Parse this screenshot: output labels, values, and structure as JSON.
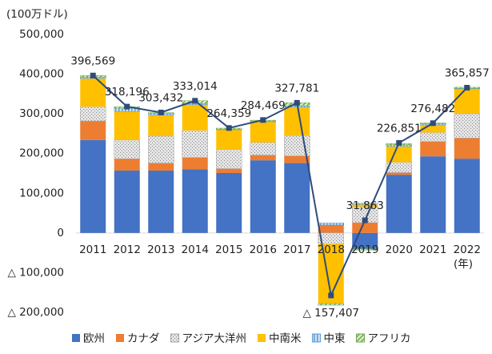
{
  "chart_data": {
    "type": "bar",
    "unit_label": "(100万ドル)",
    "x_unit_label": "(年)",
    "categories": [
      "2011",
      "2012",
      "2013",
      "2014",
      "2015",
      "2016",
      "2017",
      "2018",
      "2019",
      "2020",
      "2021",
      "2022"
    ],
    "series": [
      {
        "name": "欧州",
        "color": "#4472c4",
        "values": [
          234000,
          157000,
          157000,
          160000,
          151000,
          183000,
          176000,
          0,
          -40000,
          146000,
          193000,
          187000
        ]
      },
      {
        "name": "カナダ",
        "color": "#ed7d31",
        "values": [
          48000,
          30000,
          19000,
          30000,
          11000,
          13000,
          18000,
          20000,
          26000,
          6000,
          37000,
          52000
        ]
      },
      {
        "name": "アジア大洋州",
        "color": "#a5a5a5",
        "values": [
          36000,
          47000,
          68000,
          68000,
          48000,
          32000,
          51000,
          -28000,
          40000,
          26000,
          23000,
          61000
        ]
      },
      {
        "name": "中南米",
        "color": "#ffc000",
        "values": [
          71000,
          72000,
          53000,
          65000,
          50000,
          52000,
          72000,
          -150000,
          6000,
          40000,
          19000,
          63000
        ]
      },
      {
        "name": "中東",
        "color": "#5b9bd5",
        "values": [
          3000,
          8000,
          4000,
          3000,
          1000,
          2000,
          3000,
          5000,
          3000,
          4000,
          3000,
          1000
        ]
      },
      {
        "name": "アフリカ",
        "color": "#70ad47",
        "values": [
          4500,
          4000,
          2000,
          7000,
          3000,
          2000,
          8000,
          -4000,
          -3000,
          3000,
          2000,
          3000
        ]
      }
    ],
    "totals": {
      "color": "#2f4b7c",
      "values": [
        396569,
        318196,
        303432,
        333014,
        264359,
        284469,
        327781,
        -157407,
        31863,
        226851,
        276482,
        365857
      ],
      "value_labels": [
        "396,569",
        "318,196",
        "303,432",
        "333,014",
        "264,359",
        "284,469",
        "327,781",
        "△ 157,407",
        "31,863",
        "226,851",
        "276,482",
        "365,857"
      ]
    },
    "ylim": [
      -200000,
      500000
    ],
    "yticks": [
      {
        "value": 500000,
        "label": "500,000"
      },
      {
        "value": 400000,
        "label": "400,000"
      },
      {
        "value": 300000,
        "label": "300,000"
      },
      {
        "value": 200000,
        "label": "200,000"
      },
      {
        "value": 100000,
        "label": "100,000"
      },
      {
        "value": 0,
        "label": "0"
      },
      {
        "value": -100000,
        "label": "△ 100,000"
      },
      {
        "value": -200000,
        "label": "△ 200,000"
      }
    ]
  }
}
